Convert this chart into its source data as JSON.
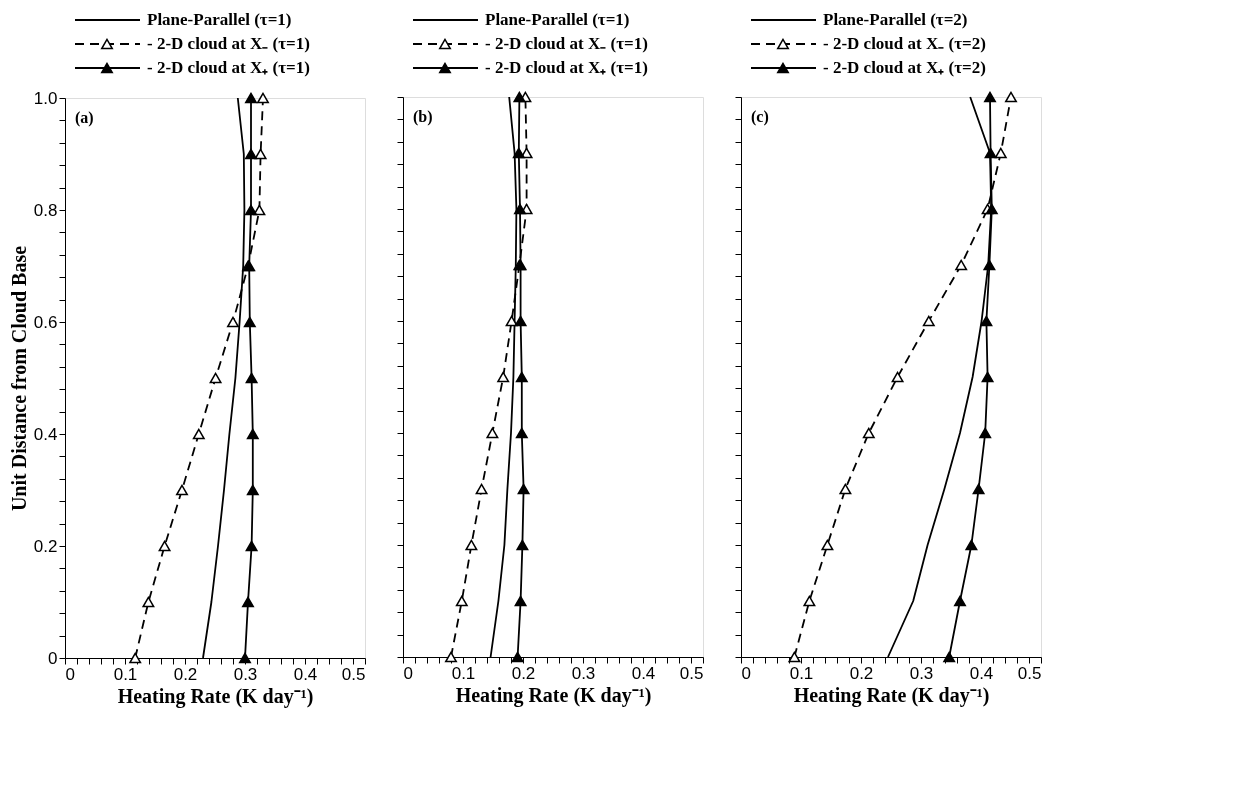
{
  "chart_data": [
    {
      "type": "line",
      "xlabel": "Heating Rate (K day⁻¹)",
      "ylabel": "Unit Distance from Cloud Base",
      "xlim": [
        0,
        0.5
      ],
      "ylim": [
        0,
        1
      ],
      "xticks": [
        0,
        {
          "value": 0.02,
          "label": null
        },
        {
          "value": 0.04,
          "label": null
        },
        {
          "value": 0.06,
          "label": null
        },
        {
          "value": 0.08,
          "label": null
        },
        0.1,
        {
          "value": 0.12,
          "label": null
        },
        {
          "value": 0.14,
          "label": null
        },
        {
          "value": 0.16,
          "label": null
        },
        {
          "value": 0.18,
          "label": null
        },
        0.2,
        {
          "value": 0.22,
          "label": null
        },
        {
          "value": 0.24,
          "label": null
        },
        {
          "value": 0.26,
          "label": null
        },
        {
          "value": 0.28,
          "label": null
        },
        0.3,
        {
          "value": 0.32,
          "label": null
        },
        {
          "value": 0.34,
          "label": null
        },
        {
          "value": 0.36,
          "label": null
        },
        {
          "value": 0.38,
          "label": null
        },
        0.4,
        {
          "value": 0.42,
          "label": null
        },
        {
          "value": 0.44,
          "label": null
        },
        {
          "value": 0.46,
          "label": null
        },
        {
          "value": 0.48,
          "label": null
        },
        0.5
      ],
      "yticks": [
        0,
        {
          "value": 0.04,
          "label": null
        },
        {
          "value": 0.08,
          "label": null
        },
        {
          "value": 0.12,
          "label": null
        },
        {
          "value": 0.16,
          "label": null
        },
        0.2,
        {
          "value": 0.24,
          "label": null
        },
        {
          "value": 0.28,
          "label": null
        },
        {
          "value": 0.32,
          "label": null
        },
        {
          "value": 0.36,
          "label": null
        },
        0.4,
        {
          "value": 0.44,
          "label": null
        },
        {
          "value": 0.48,
          "label": null
        },
        {
          "value": 0.52,
          "label": null
        },
        {
          "value": 0.56,
          "label": null
        },
        0.6,
        {
          "value": 0.64,
          "label": null
        },
        {
          "value": 0.68,
          "label": null
        },
        {
          "value": 0.72,
          "label": null
        },
        {
          "value": 0.76,
          "label": null
        },
        0.8,
        {
          "value": 0.84,
          "label": null
        },
        {
          "value": 0.88,
          "label": null
        },
        {
          "value": 0.92,
          "label": null
        },
        {
          "value": 0.96,
          "label": null
        },
        {
          "value": 1,
          "label": "1.0"
        }
      ],
      "legend": "top",
      "annotations": [
        "(a)"
      ],
      "series": [
        {
          "name": "Plane-Parallel  (τ=1)",
          "color": "#000000",
          "line_style": "solid",
          "marker": "none",
          "x": [
            0.23,
            0.244,
            0.255,
            0.265,
            0.274,
            0.284,
            0.291,
            0.297,
            0.299,
            0.298,
            0.288
          ],
          "values": [
            0,
            0.1,
            0.2,
            0.3,
            0.4,
            0.5,
            0.6,
            0.7,
            0.8,
            0.9,
            1.0
          ]
        },
        {
          "name": "- 2-D cloud at X₋ (τ=1)",
          "color": "#000000",
          "line_style": "dashed",
          "marker": "triangle",
          "x": [
            0.117,
            0.139,
            0.166,
            0.195,
            0.223,
            0.251,
            0.28,
            0.305,
            0.324,
            0.326,
            0.33
          ],
          "values": [
            0,
            0.1,
            0.2,
            0.3,
            0.4,
            0.5,
            0.6,
            0.7,
            0.8,
            0.9,
            1.0
          ]
        },
        {
          "name": "- 2-D cloud at X₊ (τ=1)",
          "color": "#000000",
          "line_style": "solid",
          "marker": "triangle",
          "x": [
            0.3,
            0.305,
            0.311,
            0.313,
            0.313,
            0.311,
            0.308,
            0.307,
            0.31,
            0.31,
            0.31
          ],
          "values": [
            0,
            0.1,
            0.2,
            0.3,
            0.4,
            0.5,
            0.6,
            0.7,
            0.8,
            0.9,
            1.0
          ]
        }
      ]
    },
    {
      "type": "line",
      "xlabel": "Heating Rate (K day⁻¹)",
      "xlim": [
        0,
        0.5
      ],
      "ylim": [
        0,
        1
      ],
      "tick_labels": "x",
      "xticks": [
        0,
        {
          "value": 0.02,
          "label": null
        },
        {
          "value": 0.04,
          "label": null
        },
        {
          "value": 0.06,
          "label": null
        },
        {
          "value": 0.08,
          "label": null
        },
        0.1,
        {
          "value": 0.12,
          "label": null
        },
        {
          "value": 0.14,
          "label": null
        },
        {
          "value": 0.16,
          "label": null
        },
        {
          "value": 0.18,
          "label": null
        },
        0.2,
        {
          "value": 0.22,
          "label": null
        },
        {
          "value": 0.24,
          "label": null
        },
        {
          "value": 0.26,
          "label": null
        },
        {
          "value": 0.28,
          "label": null
        },
        0.3,
        {
          "value": 0.32,
          "label": null
        },
        {
          "value": 0.34,
          "label": null
        },
        {
          "value": 0.36,
          "label": null
        },
        {
          "value": 0.38,
          "label": null
        },
        0.4,
        {
          "value": 0.42,
          "label": null
        },
        {
          "value": 0.44,
          "label": null
        },
        {
          "value": 0.46,
          "label": null
        },
        {
          "value": 0.48,
          "label": null
        },
        0.5
      ],
      "yticks": [
        0,
        {
          "value": 0.04,
          "label": null
        },
        {
          "value": 0.08,
          "label": null
        },
        {
          "value": 0.12,
          "label": null
        },
        {
          "value": 0.16,
          "label": null
        },
        0.2,
        {
          "value": 0.24,
          "label": null
        },
        {
          "value": 0.28,
          "label": null
        },
        {
          "value": 0.32,
          "label": null
        },
        {
          "value": 0.36,
          "label": null
        },
        0.4,
        {
          "value": 0.44,
          "label": null
        },
        {
          "value": 0.48,
          "label": null
        },
        {
          "value": 0.52,
          "label": null
        },
        {
          "value": 0.56,
          "label": null
        },
        0.6,
        {
          "value": 0.64,
          "label": null
        },
        {
          "value": 0.68,
          "label": null
        },
        {
          "value": 0.72,
          "label": null
        },
        {
          "value": 0.76,
          "label": null
        },
        0.8,
        {
          "value": 0.84,
          "label": null
        },
        {
          "value": 0.88,
          "label": null
        },
        {
          "value": 0.92,
          "label": null
        },
        {
          "value": 0.96,
          "label": null
        },
        {
          "value": 1,
          "label": null
        }
      ],
      "legend": "top",
      "annotations": [
        "(b)"
      ],
      "series": [
        {
          "name": "Plane-Parallel  (τ=1)",
          "color": "#000000",
          "line_style": "solid",
          "marker": "none",
          "x": [
            0.146,
            0.159,
            0.169,
            0.174,
            0.18,
            0.184,
            0.186,
            0.188,
            0.189,
            0.186,
            0.177
          ],
          "values": [
            0,
            0.1,
            0.2,
            0.3,
            0.4,
            0.5,
            0.6,
            0.7,
            0.8,
            0.9,
            1.0
          ]
        },
        {
          "name": "- 2-D cloud at X₋ (τ=1)",
          "color": "#000000",
          "line_style": "dashed",
          "marker": "triangle",
          "x": [
            0.08,
            0.098,
            0.114,
            0.131,
            0.149,
            0.167,
            0.181,
            0.194,
            0.206,
            0.206,
            0.204
          ],
          "values": [
            0,
            0.1,
            0.2,
            0.3,
            0.4,
            0.5,
            0.6,
            0.7,
            0.8,
            0.9,
            1.0
          ]
        },
        {
          "name": "- 2-D cloud at X₊ (τ=1)",
          "color": "#000000",
          "line_style": "solid",
          "marker": "triangle",
          "x": [
            0.191,
            0.196,
            0.199,
            0.201,
            0.198,
            0.198,
            0.196,
            0.196,
            0.195,
            0.193,
            0.194
          ],
          "values": [
            0,
            0.1,
            0.2,
            0.3,
            0.4,
            0.5,
            0.6,
            0.7,
            0.8,
            0.9,
            1.0
          ]
        }
      ]
    },
    {
      "type": "line",
      "xlabel": "Heating Rate (K day⁻¹)",
      "xlim": [
        0,
        0.5
      ],
      "ylim": [
        0,
        1
      ],
      "tick_labels": "x",
      "xticks": [
        0,
        {
          "value": 0.02,
          "label": null
        },
        {
          "value": 0.04,
          "label": null
        },
        {
          "value": 0.06,
          "label": null
        },
        {
          "value": 0.08,
          "label": null
        },
        0.1,
        {
          "value": 0.12,
          "label": null
        },
        {
          "value": 0.14,
          "label": null
        },
        {
          "value": 0.16,
          "label": null
        },
        {
          "value": 0.18,
          "label": null
        },
        0.2,
        {
          "value": 0.22,
          "label": null
        },
        {
          "value": 0.24,
          "label": null
        },
        {
          "value": 0.26,
          "label": null
        },
        {
          "value": 0.28,
          "label": null
        },
        0.3,
        {
          "value": 0.32,
          "label": null
        },
        {
          "value": 0.34,
          "label": null
        },
        {
          "value": 0.36,
          "label": null
        },
        {
          "value": 0.38,
          "label": null
        },
        0.4,
        {
          "value": 0.42,
          "label": null
        },
        {
          "value": 0.44,
          "label": null
        },
        {
          "value": 0.46,
          "label": null
        },
        {
          "value": 0.48,
          "label": null
        },
        0.5
      ],
      "yticks": [
        0,
        {
          "value": 0.04,
          "label": null
        },
        {
          "value": 0.08,
          "label": null
        },
        {
          "value": 0.12,
          "label": null
        },
        {
          "value": 0.16,
          "label": null
        },
        0.2,
        {
          "value": 0.24,
          "label": null
        },
        {
          "value": 0.28,
          "label": null
        },
        {
          "value": 0.32,
          "label": null
        },
        {
          "value": 0.36,
          "label": null
        },
        0.4,
        {
          "value": 0.44,
          "label": null
        },
        {
          "value": 0.48,
          "label": null
        },
        {
          "value": 0.52,
          "label": null
        },
        {
          "value": 0.56,
          "label": null
        },
        0.6,
        {
          "value": 0.64,
          "label": null
        },
        {
          "value": 0.68,
          "label": null
        },
        {
          "value": 0.72,
          "label": null
        },
        {
          "value": 0.76,
          "label": null
        },
        0.8,
        {
          "value": 0.84,
          "label": null
        },
        {
          "value": 0.88,
          "label": null
        },
        {
          "value": 0.92,
          "label": null
        },
        {
          "value": 0.96,
          "label": null
        },
        {
          "value": 1,
          "label": null
        }
      ],
      "legend": "top",
      "annotations": [
        "(c)"
      ],
      "series": [
        {
          "name": "Plane-Parallel  (τ=2)",
          "color": "#000000",
          "line_style": "solid",
          "marker": "none",
          "x": [
            0.245,
            0.287,
            0.311,
            0.339,
            0.365,
            0.386,
            0.401,
            0.412,
            0.417,
            0.415,
            0.382
          ],
          "values": [
            0,
            0.1,
            0.2,
            0.3,
            0.4,
            0.5,
            0.6,
            0.7,
            0.8,
            0.9,
            1.0
          ]
        },
        {
          "name": "- 2-D cloud at X₋ (τ=2)",
          "color": "#000000",
          "line_style": "dashed",
          "marker": "triangle",
          "x": [
            0.089,
            0.114,
            0.144,
            0.174,
            0.213,
            0.261,
            0.313,
            0.367,
            0.411,
            0.433,
            0.45
          ],
          "values": [
            0,
            0.1,
            0.2,
            0.3,
            0.4,
            0.5,
            0.6,
            0.7,
            0.8,
            0.9,
            1.0
          ]
        },
        {
          "name": "- 2-D cloud at X₊ (τ=2)",
          "color": "#000000",
          "line_style": "solid",
          "marker": "triangle",
          "x": [
            0.347,
            0.365,
            0.384,
            0.396,
            0.407,
            0.411,
            0.409,
            0.414,
            0.418,
            0.416,
            0.415
          ],
          "values": [
            0,
            0.1,
            0.2,
            0.3,
            0.4,
            0.5,
            0.6,
            0.7,
            0.8,
            0.9,
            1.0
          ]
        }
      ]
    }
  ]
}
